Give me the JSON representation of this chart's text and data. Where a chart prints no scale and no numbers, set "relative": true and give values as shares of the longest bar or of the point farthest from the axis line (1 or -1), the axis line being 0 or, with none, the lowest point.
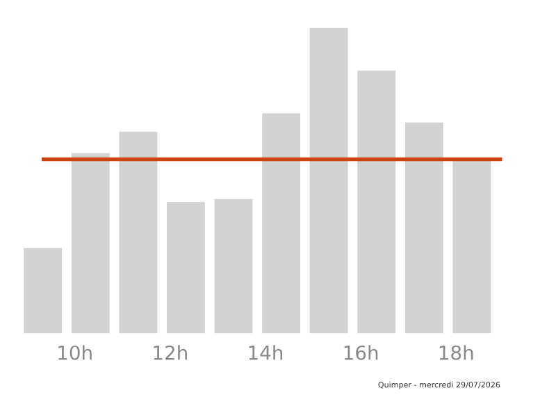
{
  "chart_data": {
    "type": "bar",
    "relative": true,
    "categories": [
      null,
      "10h",
      null,
      "12h",
      null,
      "14h",
      null,
      "16h",
      null,
      "18h"
    ],
    "values": [
      0.28,
      0.59,
      0.66,
      0.43,
      0.44,
      0.72,
      1,
      0.86,
      0.69,
      0.57
    ],
    "color": "#d3d3d3",
    "ref_lines": [
      {
        "axis": "y",
        "value": 0.57,
        "color": "#cc4411",
        "line_style": "solid"
      }
    ],
    "annotations": [
      "Quimper - mercredi 29/07/2026"
    ],
    "grid": false,
    "legend": false
  }
}
